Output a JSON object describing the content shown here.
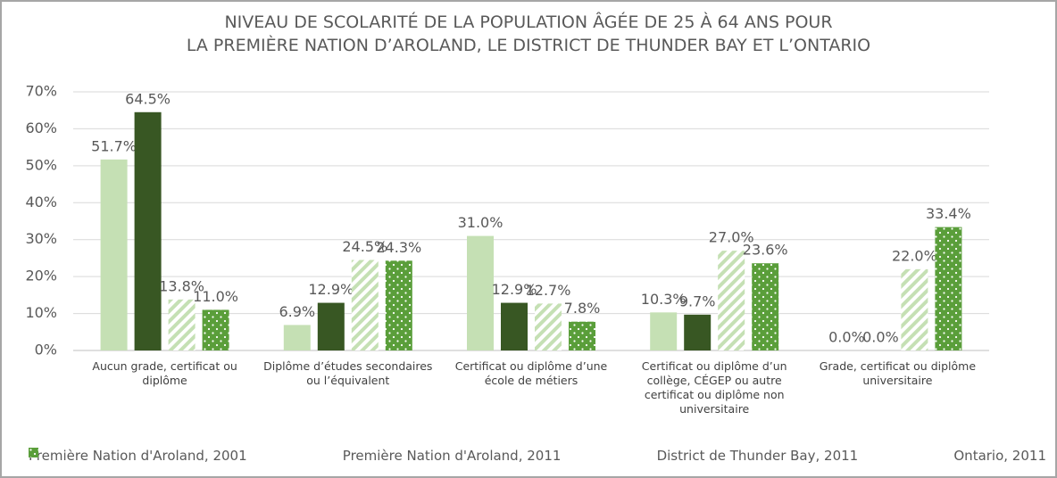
{
  "chart_data": {
    "type": "bar",
    "title": [
      "NIVEAU DE SCOLARITÉ DE LA POPULATION ÂGÉE DE 25 À 64 ANS POUR",
      "LA PREMIÈRE NATION D’AROLAND, LE DISTRICT DE THUNDER BAY ET L’ONTARIO"
    ],
    "categories": [
      "Aucun grade, certificat ou diplôme",
      "Diplôme d’études secondaires ou l’équivalent",
      "Certificat ou diplôme d’une école de métiers",
      "Certificat ou diplôme d’un collège, CÉGEP ou autre certificat ou diplôme non universitaire",
      "Grade, certificat ou diplôme universitaire"
    ],
    "series": [
      {
        "name": "Première Nation d'Aroland, 2001",
        "color": "#c5e0b4",
        "pattern": "solid",
        "values": [
          51.7,
          6.9,
          31.0,
          10.3,
          0.0
        ],
        "value_labels": [
          "51.7%",
          "6.9%",
          "31.0%",
          "10.3%",
          "0.0%"
        ]
      },
      {
        "name": "Première Nation d'Aroland, 2011",
        "color": "#385723",
        "pattern": "solid",
        "values": [
          64.5,
          12.9,
          12.9,
          9.7,
          0.0
        ],
        "value_labels": [
          "64.5%",
          "12.9%",
          "12.9%",
          "9.7%",
          "0.0%"
        ]
      },
      {
        "name": "District de Thunder Bay, 2011",
        "color": "#c5e0b4",
        "pattern": "stripes",
        "values": [
          13.8,
          24.5,
          12.7,
          27.0,
          22.0
        ],
        "value_labels": [
          "13.8%",
          "24.5%",
          "12.7%",
          "27.0%",
          "22.0%"
        ]
      },
      {
        "name": "Ontario, 2011",
        "color": "#5a9e3a",
        "pattern": "dots",
        "values": [
          11.0,
          24.3,
          7.8,
          23.6,
          33.4
        ],
        "value_labels": [
          "11.0%",
          "24.3%",
          "7.8%",
          "23.6%",
          "33.4%"
        ]
      }
    ],
    "ylim": [
      0,
      70
    ],
    "yticks": [
      {
        "value": 0,
        "label": "0%"
      },
      {
        "value": 10,
        "label": "10%"
      },
      {
        "value": 20,
        "label": "20%"
      },
      {
        "value": 30,
        "label": "30%"
      },
      {
        "value": 40,
        "label": "40%"
      },
      {
        "value": 50,
        "label": "50%"
      },
      {
        "value": 60,
        "label": "60%"
      },
      {
        "value": 70,
        "label": "70%"
      }
    ],
    "grid": true,
    "legend": "bottom"
  }
}
